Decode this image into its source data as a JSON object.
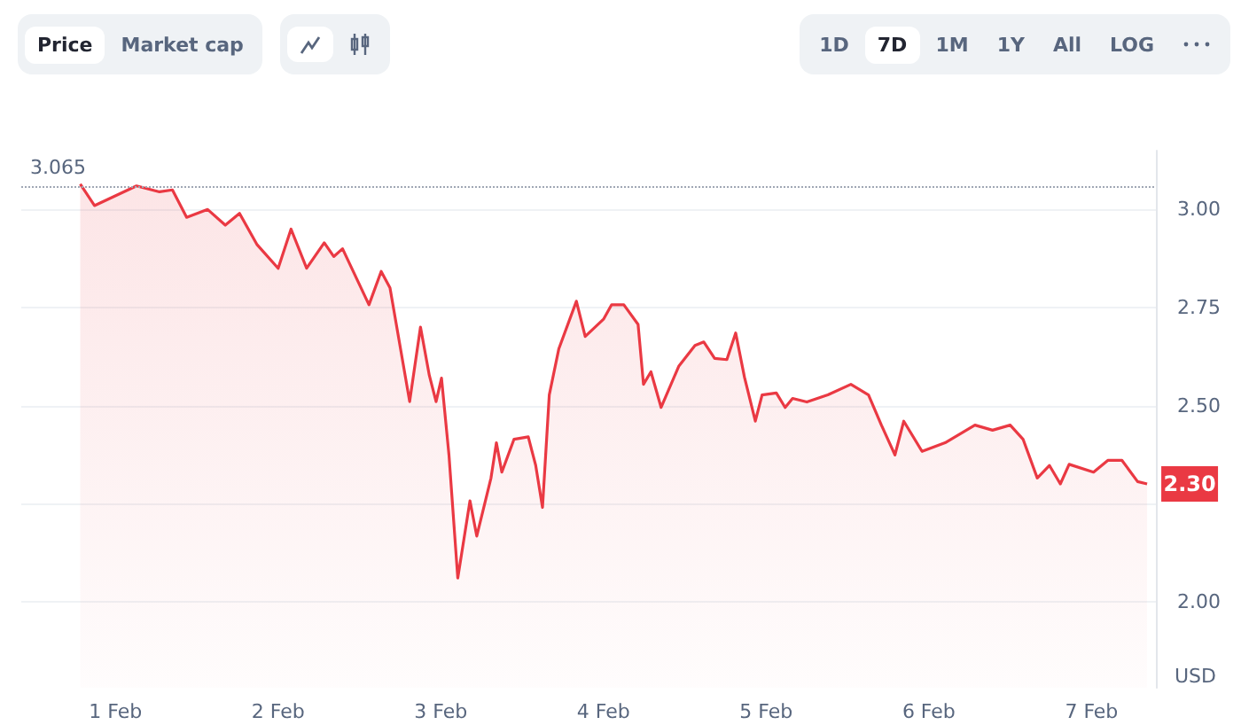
{
  "chart_data": {
    "type": "area",
    "annotations": [
      "Price",
      "Market cap",
      "1D",
      "7D",
      "1M",
      "1Y",
      "All",
      "LOG",
      {
        "text": "2.30",
        "x": "--02-07T08:12",
        "y": 2.3
      }
    ],
    "ylabel": "USD",
    "x": [
      "--01-31T18:48",
      "--01-31T20:54",
      "--02-01T03:06",
      "--02-01T06:30",
      "--02-01T08:24",
      "--02-01T10:30",
      "--02-01T13:36",
      "--02-01T16:12",
      "--02-01T18:18",
      "--02-01T20:54",
      "--02-02T00:00",
      "--02-02T01:54",
      "--02-02T04:12",
      "--02-02T06:48",
      "--02-02T08:12",
      "--02-02T09:30",
      "--02-02T13:24",
      "--02-02T15:12",
      "--02-02T16:30",
      "--02-02T19:24",
      "--02-02T21:00",
      "--02-02T22:18",
      "--02-02T23:18",
      "--02-03T00:06",
      "--02-03T01:12",
      "--02-03T02:30",
      "--02-03T04:18",
      "--02-03T05:18",
      "--02-03T07:24",
      "--02-03T08:12",
      "--02-03T09:00",
      "--02-03T10:48",
      "--02-03T12:54",
      "--02-03T14:00",
      "--02-03T15:00",
      "--02-03T16:00",
      "--02-03T17:24",
      "--02-03T20:00",
      "--02-03T21:18",
      "--02-04T00:00",
      "--02-04T01:12",
      "--02-04T03:00",
      "--02-04T05:06",
      "--02-04T05:54",
      "--02-04T07:00",
      "--02-04T08:30",
      "--02-04T11:06",
      "--02-04T13:30",
      "--02-04T14:48",
      "--02-04T16:24",
      "--02-04T18:12",
      "--02-04T19:30",
      "--02-04T20:48",
      "--02-04T22:24",
      "--02-04T23:24",
      "--02-05T01:30",
      "--02-05T02:48",
      "--02-05T03:54",
      "--02-05T06:00",
      "--02-05T09:06",
      "--02-05T12:30",
      "--02-05T15:06",
      "--02-05T17:00",
      "--02-05T19:00",
      "--02-05T20:18",
      "--02-05T23:00",
      "--02-06T02:24",
      "--02-06T06:48",
      "--02-06T09:24",
      "--02-06T12:00",
      "--02-06T13:54",
      "--02-06T16:00",
      "--02-06T17:48",
      "--02-06T19:24",
      "--02-06T20:42",
      "--02-07T00:18",
      "--02-07T02:24",
      "--02-07T04:30",
      "--02-07T06:48",
      "--02-07T08:12"
    ],
    "series": [
      {
        "color": "#ea3943",
        "values": [
          3.065,
          3.01,
          3.06,
          3.045,
          3.05,
          2.98,
          3.0,
          2.96,
          2.99,
          2.91,
          2.85,
          2.95,
          2.85,
          2.915,
          2.88,
          2.9,
          2.757,
          2.842,
          2.8,
          2.51,
          2.7,
          2.577,
          2.51,
          2.57,
          2.374,
          2.06,
          2.257,
          2.167,
          2.315,
          2.405,
          2.33,
          2.414,
          2.42,
          2.347,
          2.24,
          2.527,
          2.644,
          2.766,
          2.676,
          2.72,
          2.757,
          2.757,
          2.707,
          2.554,
          2.586,
          2.495,
          2.6,
          2.653,
          2.662,
          2.62,
          2.617,
          2.685,
          2.572,
          2.46,
          2.527,
          2.532,
          2.495,
          2.518,
          2.509,
          2.527,
          2.554,
          2.527,
          2.45,
          2.374,
          2.46,
          2.383,
          2.405,
          2.45,
          2.437,
          2.45,
          2.414,
          2.315,
          2.347,
          2.3,
          2.35,
          2.33,
          2.36,
          2.36,
          2.306,
          2.3
        ]
      }
    ],
    "xlim": [
      "--01-31T10:06",
      "--02-07T09:30"
    ],
    "xticks": [
      {
        "value": "--02-01",
        "label": "1 Feb"
      },
      {
        "value": "--02-02",
        "label": "2 Feb"
      },
      {
        "value": "--02-03",
        "label": "3 Feb"
      },
      {
        "value": "--02-04",
        "label": "4 Feb"
      },
      {
        "value": "--02-05",
        "label": "5 Feb"
      },
      {
        "value": "--02-06",
        "label": "6 Feb"
      },
      {
        "value": "--02-07",
        "label": "7 Feb"
      }
    ],
    "ylim": [
      1.78,
      3.15
    ],
    "yticks": [
      {
        "value": 2,
        "label": "2.00"
      },
      {
        "value": 2.25,
        "label": null
      },
      {
        "value": 2.5,
        "label": "2.50"
      },
      {
        "value": 2.75,
        "label": "2.75"
      },
      {
        "value": 3,
        "label": "3.00"
      }
    ],
    "ref_lines": [
      {
        "axis": "y",
        "value": 3.065,
        "label": "3.065",
        "color": "#a0a7b4",
        "line_style": "dotted"
      }
    ],
    "grid": "y",
    "marker": "none",
    "line_style": "solid"
  }
}
